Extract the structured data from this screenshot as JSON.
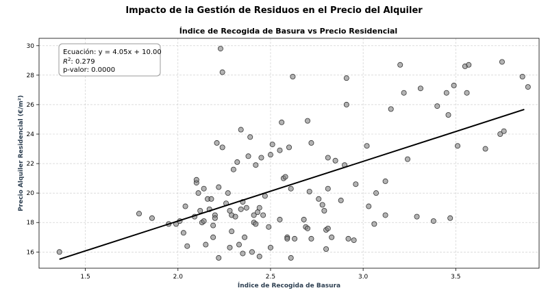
{
  "chart_data": {
    "type": "scatter",
    "suptitle": "Impacto de la Gestión de Residuos en el Precio del Alquiler",
    "title": "Índice de Recogida de Basura vs Precio Residencial",
    "xlabel": "Índice de Recogida de Basura",
    "ylabel": "Precio Alquiler Residencial (€/m²)",
    "xlim": [
      1.25,
      3.95
    ],
    "ylim": [
      14.9,
      30.5
    ],
    "xticks": [
      1.5,
      2.0,
      2.5,
      3.0,
      3.5
    ],
    "yticks": [
      16,
      18,
      20,
      22,
      24,
      26,
      28,
      30
    ],
    "xtick_labels": [
      "1.5",
      "2.0",
      "2.5",
      "3.0",
      "3.5"
    ],
    "ytick_labels": [
      "16",
      "18",
      "20",
      "22",
      "24",
      "26",
      "28",
      "30"
    ],
    "grid": true,
    "point_color": "#808080",
    "fit_line": {
      "slope": 4.05,
      "intercept": 10.0,
      "x_range": [
        1.36,
        3.87
      ],
      "color": "#000000"
    },
    "annotation": {
      "line1": "Ecuación: y = 4.05x + 10.00",
      "line2_prefix": "R",
      "line2_sup": "2",
      "line2_suffix": ": 0.279",
      "line3": "p-valor: 0.0000"
    },
    "points": [
      [
        1.36,
        16.0
      ],
      [
        1.79,
        18.6
      ],
      [
        1.86,
        18.3
      ],
      [
        1.95,
        17.9
      ],
      [
        1.99,
        17.9
      ],
      [
        2.01,
        18.1
      ],
      [
        2.03,
        17.3
      ],
      [
        2.04,
        19.1
      ],
      [
        2.05,
        16.4
      ],
      [
        2.09,
        18.4
      ],
      [
        2.1,
        20.7
      ],
      [
        2.1,
        20.9
      ],
      [
        2.11,
        20.0
      ],
      [
        2.12,
        18.8
      ],
      [
        2.13,
        18.0
      ],
      [
        2.14,
        18.1
      ],
      [
        2.14,
        20.3
      ],
      [
        2.15,
        16.5
      ],
      [
        2.16,
        19.6
      ],
      [
        2.17,
        18.9
      ],
      [
        2.18,
        19.6
      ],
      [
        2.19,
        17.8
      ],
      [
        2.19,
        17.0
      ],
      [
        2.2,
        18.5
      ],
      [
        2.2,
        18.3
      ],
      [
        2.21,
        23.4
      ],
      [
        2.22,
        20.4
      ],
      [
        2.22,
        15.6
      ],
      [
        2.23,
        29.8
      ],
      [
        2.24,
        23.1
      ],
      [
        2.24,
        28.2
      ],
      [
        2.26,
        19.3
      ],
      [
        2.27,
        20.0
      ],
      [
        2.28,
        18.8
      ],
      [
        2.28,
        16.3
      ],
      [
        2.29,
        18.5
      ],
      [
        2.29,
        17.4
      ],
      [
        2.3,
        21.6
      ],
      [
        2.31,
        18.4
      ],
      [
        2.32,
        22.1
      ],
      [
        2.33,
        16.5
      ],
      [
        2.34,
        24.3
      ],
      [
        2.34,
        18.9
      ],
      [
        2.35,
        15.9
      ],
      [
        2.35,
        19.4
      ],
      [
        2.36,
        17.0
      ],
      [
        2.37,
        19.0
      ],
      [
        2.38,
        22.5
      ],
      [
        2.39,
        23.8
      ],
      [
        2.4,
        16.0
      ],
      [
        2.41,
        18.5
      ],
      [
        2.41,
        18.0
      ],
      [
        2.42,
        17.9
      ],
      [
        2.42,
        21.9
      ],
      [
        2.43,
        18.7
      ],
      [
        2.44,
        15.7
      ],
      [
        2.44,
        19.0
      ],
      [
        2.45,
        22.4
      ],
      [
        2.46,
        18.5
      ],
      [
        2.47,
        19.8
      ],
      [
        2.49,
        17.7
      ],
      [
        2.5,
        22.6
      ],
      [
        2.5,
        16.3
      ],
      [
        2.51,
        23.3
      ],
      [
        2.55,
        18.2
      ],
      [
        2.55,
        22.9
      ],
      [
        2.56,
        24.8
      ],
      [
        2.57,
        21.0
      ],
      [
        2.58,
        21.1
      ],
      [
        2.59,
        17.0
      ],
      [
        2.59,
        16.9
      ],
      [
        2.6,
        23.1
      ],
      [
        2.61,
        20.3
      ],
      [
        2.61,
        15.6
      ],
      [
        2.62,
        27.9
      ],
      [
        2.63,
        16.9
      ],
      [
        2.68,
        18.2
      ],
      [
        2.69,
        17.7
      ],
      [
        2.7,
        24.9
      ],
      [
        2.7,
        17.6
      ],
      [
        2.71,
        20.1
      ],
      [
        2.72,
        23.4
      ],
      [
        2.72,
        16.9
      ],
      [
        2.76,
        19.6
      ],
      [
        2.78,
        19.2
      ],
      [
        2.79,
        18.8
      ],
      [
        2.8,
        16.2
      ],
      [
        2.8,
        17.5
      ],
      [
        2.81,
        22.4
      ],
      [
        2.81,
        17.6
      ],
      [
        2.81,
        20.3
      ],
      [
        2.83,
        17.0
      ],
      [
        2.85,
        22.2
      ],
      [
        2.88,
        19.5
      ],
      [
        2.9,
        21.9
      ],
      [
        2.91,
        27.8
      ],
      [
        2.91,
        26.0
      ],
      [
        2.92,
        16.9
      ],
      [
        2.95,
        16.8
      ],
      [
        2.96,
        20.6
      ],
      [
        3.02,
        23.2
      ],
      [
        3.03,
        19.1
      ],
      [
        3.06,
        17.9
      ],
      [
        3.07,
        20.0
      ],
      [
        3.12,
        18.5
      ],
      [
        3.12,
        20.8
      ],
      [
        3.15,
        25.7
      ],
      [
        3.2,
        28.7
      ],
      [
        3.22,
        26.8
      ],
      [
        3.24,
        22.3
      ],
      [
        3.29,
        18.4
      ],
      [
        3.31,
        27.1
      ],
      [
        3.38,
        18.1
      ],
      [
        3.4,
        25.9
      ],
      [
        3.45,
        26.8
      ],
      [
        3.46,
        25.3
      ],
      [
        3.47,
        18.3
      ],
      [
        3.49,
        27.3
      ],
      [
        3.51,
        23.2
      ],
      [
        3.55,
        28.6
      ],
      [
        3.56,
        26.8
      ],
      [
        3.57,
        28.7
      ],
      [
        3.66,
        23.0
      ],
      [
        3.74,
        24.0
      ],
      [
        3.75,
        28.9
      ],
      [
        3.76,
        24.2
      ],
      [
        3.86,
        27.9
      ],
      [
        3.89,
        27.2
      ]
    ]
  }
}
